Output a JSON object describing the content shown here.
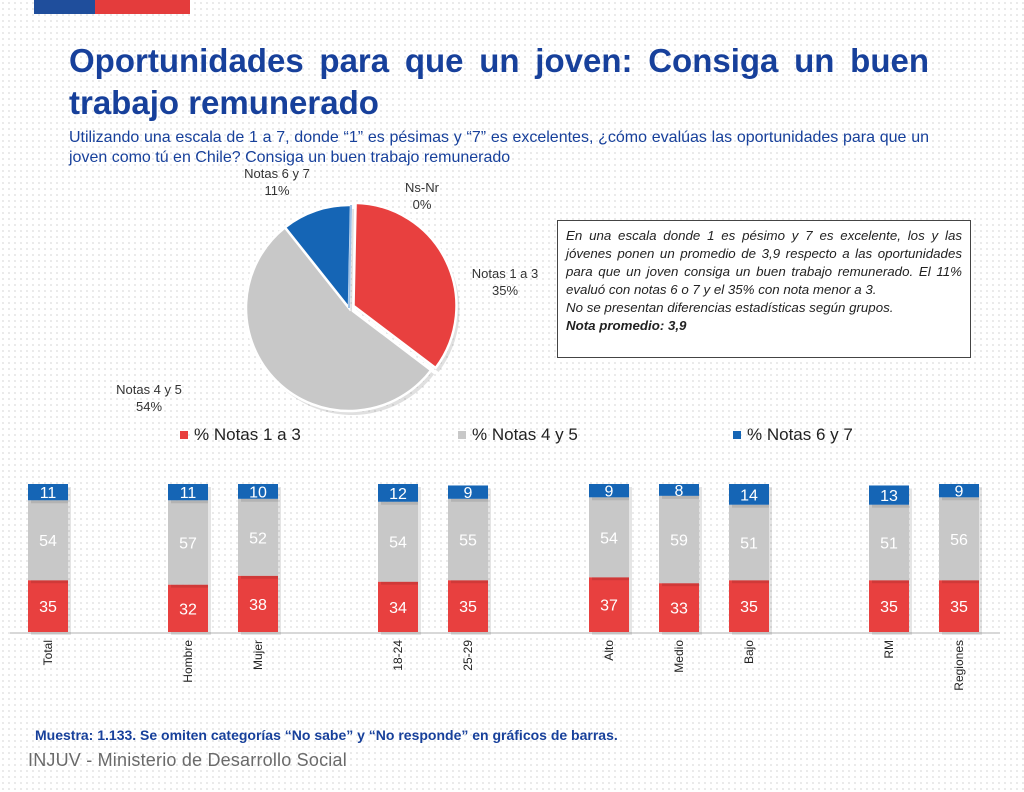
{
  "title": "Oportunidades para que un joven: Consiga un buen trabajo remunerado",
  "subtitle": "Utilizando una escala de 1 a 7, donde “1” es pésimas y “7” es excelentes, ¿cómo evalúas las oportunidades para que un joven como tú en Chile? Consiga un buen trabajo remunerado",
  "colors": {
    "red": "#e8403f",
    "gray": "#c8c8c8",
    "blue": "#1565b5",
    "title_blue": "#17409b"
  },
  "info_box": {
    "text": "En una escala donde 1 es pésimo y 7 es excelente, los y las jóvenes ponen un promedio de 3,9 respecto a las oportunidades para que un joven consiga un buen trabajo remunerado. El 11% evaluó con notas 6 o 7 y el 35% con nota menor a 3.",
    "line2": "No se presentan diferencias estadísticas según grupos.",
    "line3": "Nota promedio: 3,9"
  },
  "legend": [
    "% Notas 1 a 3",
    "% Notas 4 y 5",
    "% Notas 6 y 7"
  ],
  "footnote": "Muestra: 1.133. Se omiten categorías “No sabe” y “No responde” en gráficos de barras.",
  "org": "INJUV - Ministerio de Desarrollo Social",
  "chart_data": [
    {
      "type": "pie",
      "slices": [
        {
          "label": "Notas 1 a 3",
          "value": 35,
          "value_label": "35%",
          "color": "#e8403f"
        },
        {
          "label": "Notas 4 y 5",
          "value": 54,
          "value_label": "54%",
          "color": "#c8c8c8"
        },
        {
          "label": "Notas 6 y 7",
          "value": 11,
          "value_label": "11%",
          "color": "#1565b5"
        },
        {
          "label": "Ns-Nr",
          "value": 0,
          "value_label": "0%",
          "color": "#9ec1e6"
        }
      ]
    },
    {
      "type": "bar",
      "stacked": true,
      "categories": [
        "Total",
        "Hombre",
        "Mujer",
        "18-24",
        "25-29",
        "Alto",
        "Medio",
        "Bajo",
        "RM",
        "Regiones"
      ],
      "series": [
        {
          "name": "% Notas 1 a 3",
          "color": "#e8403f",
          "values": [
            35,
            32,
            38,
            34,
            35,
            37,
            33,
            35,
            35,
            35
          ]
        },
        {
          "name": "% Notas 4 y 5",
          "color": "#c8c8c8",
          "values": [
            54,
            57,
            52,
            54,
            55,
            54,
            59,
            51,
            51,
            56
          ]
        },
        {
          "name": "% Notas 6 y 7",
          "color": "#1565b5",
          "values": [
            11,
            11,
            10,
            12,
            9,
            9,
            8,
            14,
            13,
            9
          ]
        }
      ]
    }
  ]
}
